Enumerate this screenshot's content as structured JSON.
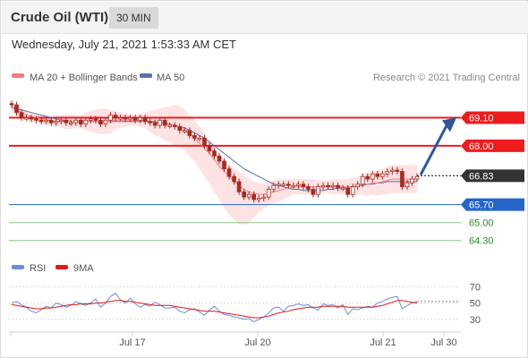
{
  "header": {
    "instrument": "Crude Oil (WTI)",
    "timeframe": "30 MIN",
    "datetime": "Wednesday, July 21, 2021 1:53:33 AM CET"
  },
  "legend": {
    "ma20_label": "MA 20 + Bollinger Bands",
    "ma50_label": "MA 50",
    "copyright": "Research © 2021 Trading Central",
    "rsi_label": "RSI",
    "rsi_ma_label": "9MA"
  },
  "colors": {
    "ma20": "#f47c7c",
    "bollinger_fill": "#fde0e0",
    "ma50": "#5a6fb0",
    "candle": "#a82a20",
    "resistance": "#ee1c1c",
    "current_price": "#333333",
    "pivot": "#2566c9",
    "support": "#8bc48b",
    "support_text": "#2a8a2a",
    "arrow": "#2a58a0",
    "rsi": "#6c8fd8",
    "rsi_ma": "#e01818"
  },
  "chart_data": [
    {
      "type": "line",
      "title": "Crude Oil (WTI) 30 MIN",
      "x_ticks": [
        "Jul 17",
        "Jul 20",
        "Jul 21",
        "Jul 30"
      ],
      "ylim": [
        63.8,
        70.2
      ],
      "levels": [
        {
          "name": "resistance-2",
          "value": 69.1,
          "label": "69.10"
        },
        {
          "name": "resistance-1",
          "value": 68.0,
          "label": "68.00"
        },
        {
          "name": "current-price",
          "value": 66.83,
          "label": "66.83"
        },
        {
          "name": "pivot",
          "value": 65.7,
          "label": "65.70"
        },
        {
          "name": "support-1",
          "value": 65.0,
          "label": "65.00"
        },
        {
          "name": "support-2",
          "value": 64.3,
          "label": "64.30"
        }
      ],
      "series": [
        {
          "name": "Price",
          "values": [
            69.6,
            69.3,
            69.1,
            69.1,
            69.05,
            69.0,
            68.95,
            69.0,
            68.9,
            68.95,
            69.0,
            68.9,
            68.9,
            69.0,
            68.85,
            69.0,
            69.05,
            69.0,
            68.85,
            69.0,
            69.2,
            69.1,
            69.1,
            69.05,
            69.1,
            69.0,
            69.1,
            68.95,
            68.9,
            68.8,
            69.0,
            68.8,
            68.8,
            68.75,
            68.6,
            68.6,
            68.4,
            68.3,
            68.3,
            68.0,
            67.8,
            67.6,
            67.4,
            67.1,
            66.8,
            66.6,
            66.2,
            66.0,
            66.1,
            65.9,
            65.95,
            66.0,
            66.3,
            66.45,
            66.5,
            66.5,
            66.45,
            66.45,
            66.5,
            66.4,
            66.3,
            66.1,
            66.4,
            66.45,
            66.4,
            66.45,
            66.35,
            66.35,
            66.1,
            66.4,
            66.5,
            66.8,
            66.7,
            66.9,
            66.8,
            66.9,
            67.0,
            67.05,
            67.0,
            66.4,
            66.55,
            66.7,
            66.8
          ]
        },
        {
          "name": "MA 20",
          "values": [
            69.5,
            69.4,
            69.3,
            69.2,
            69.15,
            69.1,
            69.05,
            69.0,
            69.0,
            68.95,
            68.95,
            68.95,
            68.95,
            68.95,
            68.95,
            68.95,
            68.95,
            68.95,
            68.95,
            68.95,
            68.95,
            69.0,
            69.0,
            69.0,
            69.0,
            69.0,
            69.0,
            69.0,
            68.95,
            68.9,
            68.9,
            68.85,
            68.85,
            68.8,
            68.75,
            68.6,
            68.45,
            68.3,
            68.1,
            67.9,
            67.7,
            67.45,
            67.2,
            67.0,
            66.8,
            66.6,
            66.45,
            66.3,
            66.2,
            66.15,
            66.1,
            66.1,
            66.15,
            66.2,
            66.25,
            66.3,
            66.35,
            66.4,
            66.4,
            66.4,
            66.4,
            66.4,
            66.4,
            66.4,
            66.4,
            66.4,
            66.4,
            66.4,
            66.4,
            66.4,
            66.45,
            66.5,
            66.5,
            66.55,
            66.55,
            66.6,
            66.65,
            66.7,
            66.7,
            66.7,
            66.7,
            66.7,
            66.7
          ]
        },
        {
          "name": "Bollinger Upper",
          "values": [
            69.7,
            69.6,
            69.5,
            69.4,
            69.3,
            69.25,
            69.2,
            69.15,
            69.1,
            69.15,
            69.2,
            69.25,
            69.25,
            69.2,
            69.2,
            69.3,
            69.35,
            69.4,
            69.45,
            69.45,
            69.4,
            69.35,
            69.3,
            69.25,
            69.2,
            69.2,
            69.25,
            69.3,
            69.35,
            69.4,
            69.45,
            69.5,
            69.55,
            69.6,
            69.55,
            69.4,
            69.2,
            69.0,
            68.75,
            68.5,
            68.2,
            67.9,
            67.6,
            67.4,
            67.25,
            67.1,
            67.0,
            66.85,
            66.7,
            66.6,
            66.55,
            66.55,
            66.6,
            66.65,
            66.7,
            66.7,
            66.7,
            66.7,
            66.7,
            66.7,
            66.7,
            66.7,
            66.65,
            66.65,
            66.65,
            66.7,
            66.7,
            66.7,
            66.7,
            66.75,
            66.8,
            66.9,
            66.95,
            67.0,
            67.05,
            67.1,
            67.2,
            67.25,
            67.25,
            67.25,
            67.25,
            67.25,
            67.25
          ]
        },
        {
          "name": "Bollinger Lower",
          "values": [
            69.3,
            69.2,
            69.1,
            69.0,
            68.95,
            68.9,
            68.85,
            68.85,
            68.8,
            68.75,
            68.7,
            68.65,
            68.65,
            68.7,
            68.7,
            68.6,
            68.55,
            68.5,
            68.45,
            68.45,
            68.5,
            68.65,
            68.7,
            68.75,
            68.8,
            68.8,
            68.75,
            68.7,
            68.55,
            68.4,
            68.35,
            68.2,
            68.15,
            68.0,
            67.95,
            67.8,
            67.6,
            67.4,
            67.1,
            66.8,
            66.5,
            66.2,
            65.9,
            65.6,
            65.3,
            65.1,
            64.95,
            64.9,
            65.0,
            65.2,
            65.4,
            65.55,
            65.7,
            65.75,
            65.8,
            65.9,
            66.0,
            66.1,
            66.1,
            66.1,
            66.1,
            66.1,
            66.15,
            66.15,
            66.15,
            66.1,
            66.1,
            66.1,
            66.1,
            66.05,
            66.1,
            66.1,
            66.05,
            66.1,
            66.05,
            66.1,
            66.1,
            66.15,
            66.15,
            66.15,
            66.15,
            66.15,
            66.15
          ]
        },
        {
          "name": "MA 50",
          "values": [
            69.5,
            69.45,
            69.4,
            69.35,
            69.3,
            69.25,
            69.2,
            69.15,
            69.1,
            69.05,
            69.0,
            69.0,
            68.95,
            68.95,
            68.95,
            68.95,
            68.95,
            68.95,
            68.95,
            68.95,
            68.95,
            68.95,
            68.95,
            68.95,
            68.95,
            68.95,
            68.95,
            68.95,
            68.95,
            68.95,
            68.9,
            68.9,
            68.85,
            68.8,
            68.75,
            68.7,
            68.6,
            68.5,
            68.4,
            68.3,
            68.15,
            68.0,
            67.85,
            67.7,
            67.55,
            67.4,
            67.25,
            67.1,
            67.0,
            66.9,
            66.8,
            66.7,
            66.6,
            66.5,
            66.45,
            66.4,
            66.35,
            66.3,
            66.3,
            66.25,
            66.25,
            66.25,
            66.25,
            66.25,
            66.3,
            66.3,
            66.35,
            66.35,
            66.4,
            66.4,
            66.45,
            66.45,
            66.5,
            66.5,
            66.55,
            66.55,
            66.6,
            66.6,
            66.6,
            66.6,
            66.6,
            66.6,
            66.6
          ]
        }
      ]
    },
    {
      "type": "line",
      "title": "RSI",
      "ylim": [
        20,
        78
      ],
      "y_ticks": [
        70,
        50,
        30
      ],
      "series": [
        {
          "name": "RSI",
          "values": [
            50,
            52,
            48,
            45,
            40,
            38,
            42,
            46,
            44,
            50,
            48,
            45,
            47,
            52,
            49,
            47,
            50,
            55,
            45,
            50,
            58,
            62,
            54,
            50,
            56,
            49,
            45,
            48,
            46,
            51,
            48,
            44,
            44,
            45,
            40,
            38,
            42,
            43,
            39,
            35,
            41,
            46,
            40,
            36,
            35,
            33,
            32,
            30,
            31,
            27,
            30,
            33,
            38,
            44,
            45,
            40,
            46,
            47,
            49,
            47,
            48,
            44,
            41,
            49,
            47,
            48,
            44,
            48,
            36,
            43,
            42,
            44,
            46,
            45,
            50,
            52,
            55,
            57,
            58,
            43,
            47,
            50,
            52
          ]
        },
        {
          "name": "9MA",
          "values": [
            48,
            47,
            46,
            45,
            44,
            43,
            43,
            44,
            44,
            45,
            46,
            47,
            48,
            48,
            49,
            49,
            49,
            50,
            50,
            51,
            52,
            53,
            53,
            52,
            52,
            51,
            50,
            49,
            48,
            47,
            47,
            47,
            47,
            46,
            45,
            44,
            43,
            42,
            41,
            40,
            40,
            40,
            39,
            38,
            37,
            36,
            35,
            34,
            33,
            32,
            32,
            33,
            34,
            36,
            38,
            39,
            40,
            42,
            43,
            44,
            45,
            45,
            45,
            46,
            46,
            46,
            46,
            46,
            45,
            45,
            45,
            45,
            45,
            45,
            46,
            47,
            49,
            51,
            53,
            53,
            52,
            51,
            50
          ]
        }
      ]
    }
  ]
}
